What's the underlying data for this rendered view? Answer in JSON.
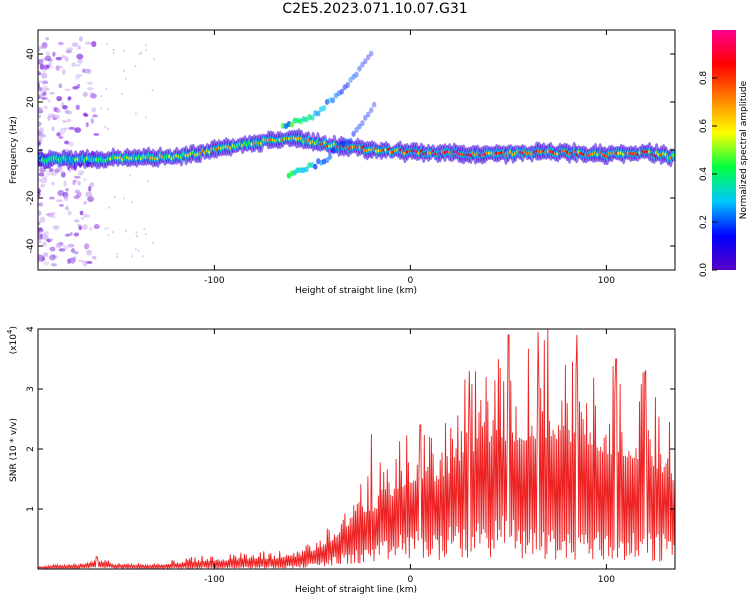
{
  "title": "C2E5.2023.071.10.07.G31",
  "chart_data": [
    {
      "type": "heatmap",
      "title": "C2E5.2023.071.10.07.G31",
      "xlabel": "Height of straight line (km)",
      "ylabel": "Frequency (Hz)",
      "xlim": [
        -190,
        135
      ],
      "ylim": [
        -50,
        50
      ],
      "xticks": [
        -100,
        0,
        100
      ],
      "yticks": [
        40,
        20,
        0,
        -20,
        -40
      ],
      "colorbar": {
        "label": "Normalized spectral amplitude",
        "range": [
          0.0,
          1.0
        ],
        "ticks": [
          "0.0",
          "0.2",
          "0.4",
          "0.6",
          "0.8"
        ],
        "colormap": [
          "#5a00c8",
          "#0000ff",
          "#00c8ff",
          "#00ff40",
          "#ffff00",
          "#ff8000",
          "#ff0000",
          "#ff0090"
        ]
      },
      "main_trace": [
        {
          "x": -185,
          "freq": -4,
          "amp": 0.35
        },
        {
          "x": -160,
          "freq": -4,
          "amp": 0.45
        },
        {
          "x": -140,
          "freq": -3,
          "amp": 0.5
        },
        {
          "x": -120,
          "freq": -3,
          "amp": 0.55
        },
        {
          "x": -100,
          "freq": 0,
          "amp": 0.6
        },
        {
          "x": -80,
          "freq": 3,
          "amp": 0.6
        },
        {
          "x": -60,
          "freq": 5,
          "amp": 0.55
        },
        {
          "x": -40,
          "freq": 2,
          "amp": 0.65
        },
        {
          "x": -20,
          "freq": 0,
          "amp": 0.7
        },
        {
          "x": 0,
          "freq": -1,
          "amp": 0.8
        },
        {
          "x": 20,
          "freq": -1,
          "amp": 0.85
        },
        {
          "x": 40,
          "freq": -2,
          "amp": 0.75
        },
        {
          "x": 60,
          "freq": -1,
          "amp": 0.8
        },
        {
          "x": 80,
          "freq": -1,
          "amp": 0.75
        },
        {
          "x": 100,
          "freq": -2,
          "amp": 0.7
        },
        {
          "x": 120,
          "freq": -1,
          "amp": 0.75
        },
        {
          "x": 135,
          "freq": -3,
          "amp": 0.6
        }
      ],
      "secondary_traces": [
        {
          "points": [
            {
              "x": -65,
              "freq": 10
            },
            {
              "x": -50,
              "freq": 14
            },
            {
              "x": -35,
              "freq": 24
            },
            {
              "x": -20,
              "freq": 40
            }
          ]
        },
        {
          "points": [
            {
              "x": -62,
              "freq": -10
            },
            {
              "x": -45,
              "freq": -5
            },
            {
              "x": -30,
              "freq": 5
            },
            {
              "x": -18,
              "freq": 20
            }
          ]
        }
      ]
    },
    {
      "type": "line",
      "xlabel": "Height of straight line (km)",
      "ylabel": "SNR (10 * v/v)",
      "y_multiplier": "(x10",
      "y_multiplier_exp": "4",
      "xlim": [
        -190,
        135
      ],
      "ylim": [
        0,
        4
      ],
      "xticks": [
        -100,
        0,
        100
      ],
      "yticks": [
        1,
        2,
        3,
        4
      ],
      "color": "#ee2222",
      "envelope": {
        "x": [
          -190,
          -170,
          -160,
          -150,
          -130,
          -110,
          -90,
          -70,
          -60,
          -50,
          -40,
          -30,
          -20,
          -10,
          0,
          10,
          20,
          30,
          40,
          50,
          60,
          70,
          80,
          90,
          100,
          110,
          120,
          135
        ],
        "low": [
          0.02,
          0.02,
          0.04,
          0.03,
          0.02,
          0.03,
          0.04,
          0.05,
          0.06,
          0.1,
          0.2,
          0.3,
          0.4,
          0.5,
          0.7,
          0.6,
          0.7,
          0.8,
          0.9,
          0.9,
          0.7,
          0.7,
          0.6,
          0.7,
          0.6,
          0.6,
          0.6,
          0.6
        ],
        "high": [
          0.05,
          0.1,
          0.22,
          0.1,
          0.1,
          0.22,
          0.28,
          0.3,
          0.35,
          0.5,
          0.8,
          1.3,
          1.6,
          2.0,
          2.3,
          2.4,
          2.7,
          3.3,
          3.5,
          3.6,
          3.9,
          4.0,
          3.9,
          3.6,
          3.5,
          3.4,
          3.3,
          2.5
        ]
      },
      "peaks": [
        {
          "x": -160,
          "y": 0.2
        },
        {
          "x": -20,
          "y": 2.25
        },
        {
          "x": 5,
          "y": 2.4
        },
        {
          "x": 30,
          "y": 3.3
        },
        {
          "x": 50,
          "y": 3.9
        },
        {
          "x": 65,
          "y": 3.95
        },
        {
          "x": 70,
          "y": 4.0
        },
        {
          "x": 85,
          "y": 3.9
        },
        {
          "x": 105,
          "y": 3.5
        },
        {
          "x": 120,
          "y": 3.3
        }
      ]
    }
  ]
}
